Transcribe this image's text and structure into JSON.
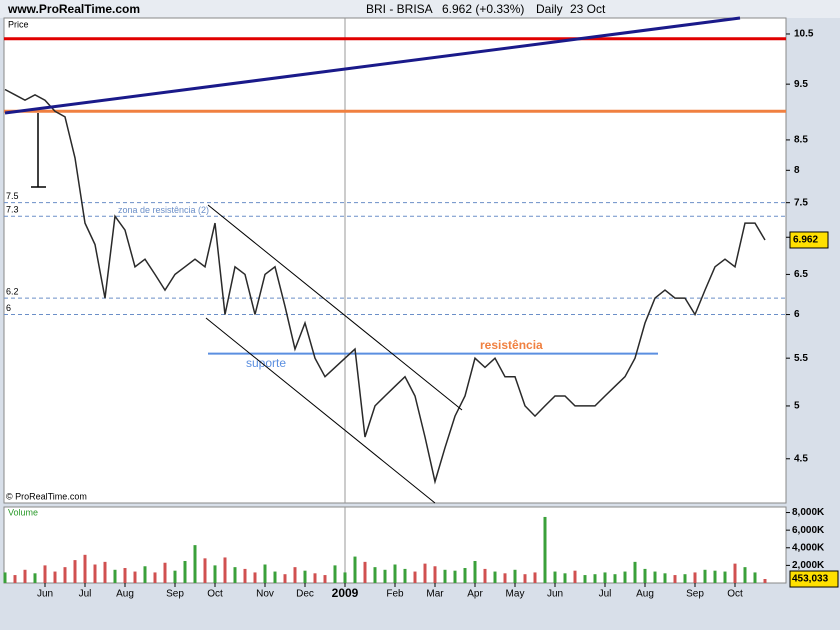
{
  "header": {
    "site": "www.ProRealTime.com",
    "symbol": "BRI - BRISA",
    "quote": "6.962 (+0.33%)",
    "period": "Daily",
    "date": "23 Oct"
  },
  "chart_data": {
    "type": "line",
    "log_scale": true,
    "price_label": "Price",
    "volume_label": "Volume",
    "copyright": "© ProRealTime.com",
    "categories": [
      null,
      null,
      null,
      null,
      "Jun",
      null,
      null,
      null,
      "Jul",
      null,
      null,
      null,
      "Aug",
      null,
      null,
      null,
      null,
      "Sep",
      null,
      null,
      null,
      "Oct",
      null,
      null,
      null,
      null,
      "Nov",
      null,
      null,
      null,
      "Dec",
      null,
      null,
      null,
      "2009",
      null,
      null,
      null,
      null,
      "Feb",
      null,
      null,
      null,
      "Mar",
      null,
      null,
      null,
      "Apr",
      null,
      null,
      null,
      "May",
      null,
      null,
      null,
      "Jun",
      null,
      null,
      null,
      null,
      "Jul",
      null,
      null,
      null,
      "Aug",
      null,
      null,
      null,
      null,
      "Sep",
      null,
      null,
      null,
      "Oct",
      null,
      null,
      null
    ],
    "series": [
      {
        "name": "BRI - BRISA",
        "color": "#2a2a2a",
        "values": [
          9.4,
          9.3,
          9.2,
          9.3,
          9.2,
          9.0,
          8.9,
          8.2,
          7.2,
          6.9,
          6.2,
          7.3,
          7.1,
          6.6,
          6.7,
          6.5,
          6.3,
          6.5,
          6.6,
          6.7,
          6.6,
          7.2,
          6.0,
          6.6,
          6.5,
          6.0,
          6.5,
          6.6,
          6.1,
          5.6,
          5.9,
          5.5,
          5.3,
          5.4,
          5.5,
          5.6,
          4.7,
          5.0,
          5.1,
          5.2,
          5.3,
          5.1,
          4.7,
          4.3,
          4.6,
          4.9,
          5.1,
          5.5,
          5.4,
          5.5,
          5.3,
          5.3,
          5.0,
          4.9,
          5.0,
          5.1,
          5.1,
          5.0,
          5.0,
          5.0,
          5.1,
          5.2,
          5.3,
          5.5,
          5.9,
          6.2,
          6.3,
          6.2,
          6.2,
          6.0,
          6.3,
          6.6,
          6.7,
          6.6,
          7.2,
          7.2,
          6.962
        ]
      },
      {
        "name": "Volume",
        "axis": "y2",
        "up_color": "#3aa03a",
        "down_color": "#d05050",
        "values": [
          1200000,
          900000,
          1500000,
          1100000,
          2000000,
          1300000,
          1800000,
          2600000,
          3200000,
          2100000,
          2400000,
          1500000,
          1700000,
          1300000,
          1900000,
          1200000,
          2300000,
          1400000,
          2500000,
          4300000,
          2800000,
          2000000,
          2900000,
          1800000,
          1600000,
          1200000,
          2100000,
          1300000,
          1000000,
          1800000,
          1400000,
          1100000,
          900000,
          2000000,
          1200000,
          3000000,
          2400000,
          1800000,
          1500000,
          2100000,
          1600000,
          1300000,
          2200000,
          1900000,
          1500000,
          1400000,
          1700000,
          2500000,
          1600000,
          1300000,
          1100000,
          1500000,
          1000000,
          1200000,
          7500000,
          1300000,
          1100000,
          1400000,
          900000,
          1000000,
          1200000,
          1000000,
          1300000,
          2400000,
          1600000,
          1300000,
          1100000,
          900000,
          1000000,
          1200000,
          1500000,
          1400000,
          1300000,
          2200000,
          1800000,
          1200000,
          453033
        ]
      }
    ],
    "ylim": [
      4.12,
      10.84
    ],
    "yticks": [
      4.5,
      5,
      5.5,
      6,
      6.5,
      7,
      7.5,
      8,
      8.5,
      9.5,
      10.5
    ],
    "y2lim": [
      0,
      8630000
    ],
    "y2ticks": [
      {
        "value": 2000000,
        "label": "2,000K"
      },
      {
        "value": 4000000,
        "label": "4,000K"
      },
      {
        "value": 6000000,
        "label": "6,000K"
      },
      {
        "value": 8000000,
        "label": "8,000K"
      }
    ],
    "volume_tag": {
      "value": 453033,
      "label": "453,033"
    },
    "hlines": [
      {
        "value": 10.4,
        "color": "#e00000"
      },
      {
        "value": 9.0,
        "color": "#f08040"
      }
    ],
    "levels": [
      7.5,
      7.3,
      6.2,
      6
    ],
    "level_color": "#6b8fc8",
    "support": {
      "value": 5.55,
      "color": "#5b8fe0",
      "label": "suporte",
      "resistance_label": "resistência"
    },
    "zone_label": "zona de resistência (2)"
  }
}
